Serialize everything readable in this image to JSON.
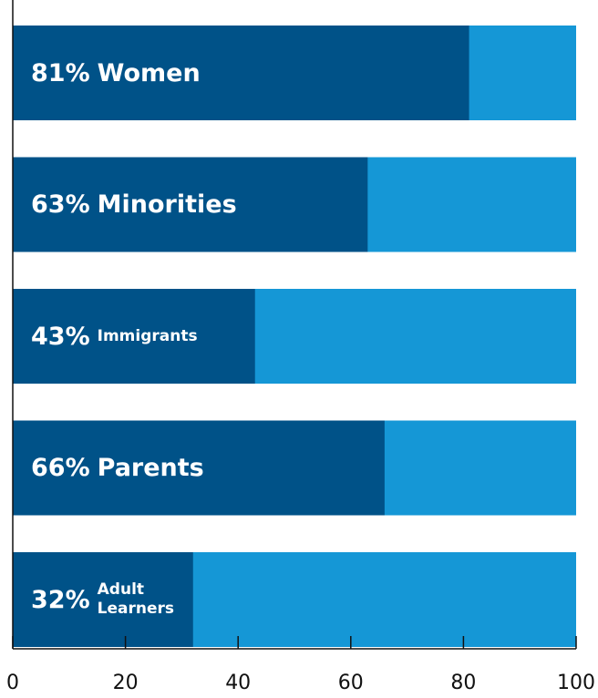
{
  "chart_data": {
    "type": "bar",
    "orientation": "horizontal",
    "categories": [
      "Women",
      "Minorities",
      "Immigrants",
      "Parents",
      "Adult Learners"
    ],
    "values": [
      81,
      63,
      43,
      66,
      32
    ],
    "value_labels": [
      "81%",
      "63%",
      "43%",
      "66%",
      "32%"
    ],
    "color": "#005288",
    "track_color": "#1597d6",
    "xlim": [
      0,
      100
    ],
    "xticks": [
      0,
      20,
      40,
      60,
      80,
      100
    ]
  }
}
